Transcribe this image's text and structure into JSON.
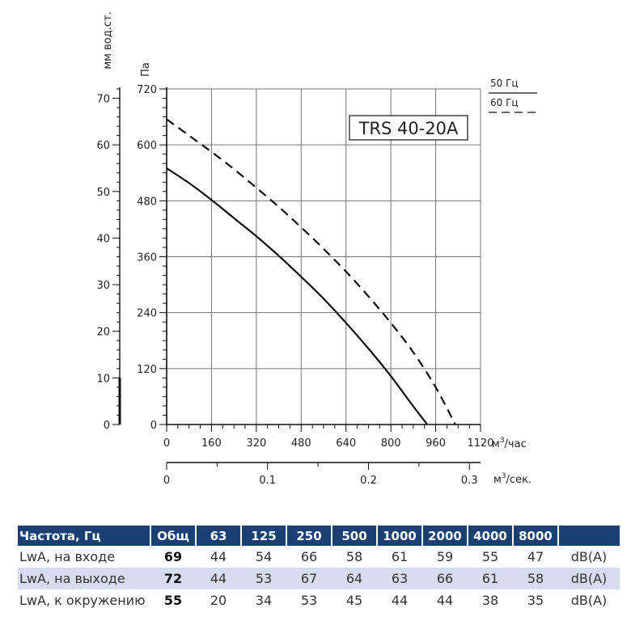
{
  "chart_data": {
    "type": "line",
    "model_label": "TRS 40-20A",
    "y_left_outer": {
      "label": "мм вод.ст.",
      "range": [
        0,
        72
      ],
      "ticks": [
        0,
        10,
        20,
        30,
        40,
        50,
        60,
        70
      ]
    },
    "y_left_inner": {
      "label": "Па",
      "range": [
        0,
        720
      ],
      "ticks": [
        0,
        120,
        240,
        360,
        480,
        600,
        720
      ]
    },
    "x_top": {
      "label": "м³/час",
      "unit_base": "м",
      "unit_sup": "3",
      "unit_tail": "/час",
      "range": [
        0,
        1120
      ],
      "ticks": [
        0,
        160,
        320,
        480,
        640,
        800,
        960,
        1120
      ]
    },
    "x_bottom": {
      "label": "м³/сек.",
      "unit_base": "м",
      "unit_sup": "3",
      "unit_tail": "/сек.",
      "range": [
        0,
        0.311
      ],
      "ticks": [
        0,
        0.1,
        0.2,
        0.3
      ]
    },
    "grid": true,
    "legend_position": "top-right",
    "series": [
      {
        "name": "50 Гц",
        "style": "solid",
        "x": [
          0,
          80,
          160,
          240,
          320,
          400,
          480,
          560,
          640,
          720,
          800,
          870,
          930
        ],
        "y": [
          550,
          518,
          482,
          443,
          404,
          362,
          317,
          270,
          218,
          163,
          104,
          47,
          0
        ]
      },
      {
        "name": "60 Гц",
        "style": "dashed",
        "x": [
          0,
          80,
          160,
          240,
          320,
          400,
          480,
          560,
          640,
          720,
          800,
          880,
          960,
          1030
        ],
        "y": [
          655,
          620,
          585,
          548,
          508,
          467,
          423,
          377,
          328,
          275,
          218,
          155,
          80,
          0
        ]
      }
    ]
  },
  "sound_table": {
    "header": [
      "Частота, Гц",
      "Общ",
      "63",
      "125",
      "250",
      "500",
      "1000",
      "2000",
      "4000",
      "8000",
      ""
    ],
    "rows": [
      {
        "label": "LwA, на входе",
        "total": "69",
        "values": [
          "44",
          "54",
          "66",
          "58",
          "61",
          "59",
          "55",
          "47"
        ],
        "unit": "dB(A)"
      },
      {
        "label": "LwA, на выходе",
        "total": "72",
        "values": [
          "44",
          "53",
          "67",
          "64",
          "63",
          "66",
          "61",
          "58"
        ],
        "unit": "dB(A)"
      },
      {
        "label": "LwA, к окружению",
        "total": "55",
        "values": [
          "20",
          "34",
          "53",
          "45",
          "44",
          "44",
          "38",
          "35"
        ],
        "unit": "dB(A)"
      }
    ]
  }
}
